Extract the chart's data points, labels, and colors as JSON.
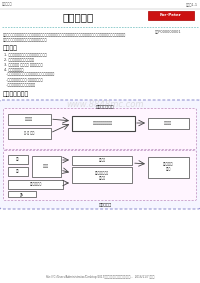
{
  "bg_color": "#ffffff",
  "header_left": "接线流概要",
  "header_right": "页码：1-1",
  "title": "接线流概要",
  "red_box_text": "For-Peter",
  "code_text": "仁心P000000001",
  "intro_text_1": "接线流概要图是面向那些想要了解系统线路连接的技术人员中半年制，此图不仅能帮助你分析线路的连接情况也能帮助你系统地查找",
  "intro_text_2": "线、连接端常见故障，且能帮助找到解决方法。",
  "features_title": "特性功能",
  "f1": "1. 对整个线路系统做出大平面线路连接显示",
  "f2": "2. 动态检测整整合到主要线区",
  "f3": "3. 海拔整体下 可更行乃 设置更多制件",
  "f4": "4. 提供了便利功能",
  "f5": "  -能够查看循、细情况、连接区块整整地方编集内容",
  "f6": "  -能按照其他们的整合 费用整整整标码",
  "f7": "  -能够按时此此整连接整整连整",
  "diagram_title": "接线流功能概述",
  "watermark": "www.8848mc.com",
  "subtitle_top": "接线图重大功能",
  "subtitle_bot": "概要画功能",
  "box_b1": "连接流图",
  "box_b2": "乱.连 串联",
  "box_m1": "基于系统线路连接检测",
  "box_r1": "整整整整",
  "box_ll1": "整整",
  "box_ll2": "整整",
  "box_fb": "分整器",
  "box_lm1": "整整整整",
  "box_lm2a": "整整整整整整整整",
  "box_lm2b": "整整整整",
  "box_lr": "基于系统整整\n整整整",
  "box_llb": "整整整连接整整",
  "box_lb3": "整A",
  "footer_text": "file:///C:/Users/Administrator/Desktop/2017一汽马自达网络故障维修手册电路图...  2016/11/7 页面打"
}
